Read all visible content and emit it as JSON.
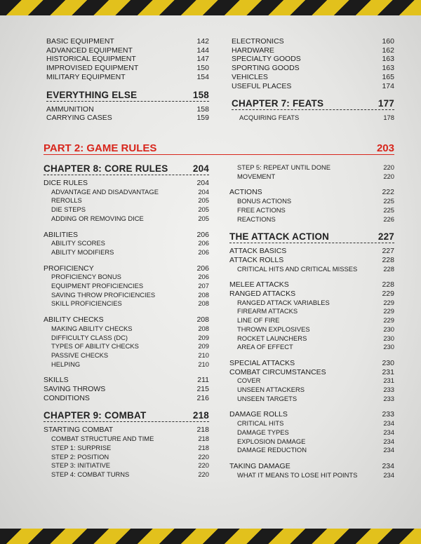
{
  "top": {
    "left": [
      {
        "items": [
          {
            "label": "BASIC EQUIPMENT",
            "page": 142
          },
          {
            "label": "ADVANCED EQUIPMENT",
            "page": 144
          },
          {
            "label": "HISTORICAL EQUIPMENT",
            "page": 147
          },
          {
            "label": "IMPROVISED EQUIPMENT",
            "page": 150
          },
          {
            "label": "MILITARY EQUIPMENT",
            "page": 154
          }
        ]
      },
      {
        "heading": {
          "label": "EVERYTHING ELSE",
          "page": 158
        },
        "items": [
          {
            "label": "AMMUNITION",
            "page": 158
          },
          {
            "label": "CARRYING CASES",
            "page": 159
          }
        ]
      }
    ],
    "right": [
      {
        "items": [
          {
            "label": "ELECTRONICS",
            "page": 160
          },
          {
            "label": "HARDWARE",
            "page": 162
          },
          {
            "label": "SPECIALTY GOODS",
            "page": 163
          },
          {
            "label": "SPORTING GOODS",
            "page": 163
          },
          {
            "label": "VEHICLES",
            "page": 165
          },
          {
            "label": "USEFUL PLACES",
            "page": 174
          }
        ]
      },
      {
        "heading": {
          "label": "CHAPTER 7: FEATS",
          "page": 177
        },
        "subitems": [
          {
            "label": "ACQUIRING FEATS",
            "page": 178
          }
        ]
      }
    ]
  },
  "part_heading": {
    "label": "PART 2: GAME RULES",
    "page": 203
  },
  "bottom": {
    "left": [
      {
        "heading": {
          "label": "CHAPTER 8: CORE RULES",
          "page": 204
        },
        "items": [
          {
            "label": "DICE RULES",
            "page": 204,
            "subitems": [
              {
                "label": "ADVANTAGE AND DISADVANTAGE",
                "page": 204
              },
              {
                "label": "REROLLS",
                "page": 205
              },
              {
                "label": "DIE STEPS",
                "page": 205
              },
              {
                "label": "ADDING OR REMOVING DICE",
                "page": 205
              }
            ]
          },
          {
            "label": "ABILITIES",
            "page": 206,
            "subitems": [
              {
                "label": "ABILITY SCORES",
                "page": 206
              },
              {
                "label": "ABILITY MODIFIERS",
                "page": 206
              }
            ]
          },
          {
            "label": "PROFICIENCY",
            "page": 206,
            "subitems": [
              {
                "label": "PROFICIENCY BONUS",
                "page": 206
              },
              {
                "label": "EQUIPMENT PROFICIENCIES",
                "page": 207
              },
              {
                "label": "SAVING THROW PROFICIENCIES",
                "page": 208
              },
              {
                "label": "SKILL PROFICIENCIES",
                "page": 208
              }
            ]
          },
          {
            "label": "ABILITY CHECKS",
            "page": 208,
            "subitems": [
              {
                "label": "MAKING ABILITY CHECKS",
                "page": 208
              },
              {
                "label": "DIFFICULTY CLASS (DC)",
                "page": 209
              },
              {
                "label": "TYPES OF ABILITY CHECKS",
                "page": 209
              },
              {
                "label": "PASSIVE CHECKS",
                "page": 210
              },
              {
                "label": "HELPING",
                "page": 210
              }
            ]
          },
          {
            "label": "SKILLS",
            "page": 211
          },
          {
            "label": "SAVING THROWS",
            "page": 215
          },
          {
            "label": "CONDITIONS",
            "page": 216
          }
        ]
      },
      {
        "heading": {
          "label": "CHAPTER 9: COMBAT",
          "page": 218
        },
        "items": [
          {
            "label": "STARTING COMBAT",
            "page": 218,
            "subitems": [
              {
                "label": "COMBAT STRUCTURE AND TIME",
                "page": 218
              },
              {
                "label": "STEP 1: SURPRISE",
                "page": 218
              },
              {
                "label": "STEP 2: POSITION",
                "page": 220
              },
              {
                "label": "STEP 3: INITIATIVE",
                "page": 220
              },
              {
                "label": "STEP 4: COMBAT TURNS",
                "page": 220
              }
            ]
          }
        ]
      }
    ],
    "right": [
      {
        "subitems": [
          {
            "label": "STEP 5: REPEAT UNTIL DONE",
            "page": 220
          },
          {
            "label": "MOVEMENT",
            "page": 220
          }
        ],
        "items": [
          {
            "label": "ACTIONS",
            "page": 222,
            "subitems": [
              {
                "label": "BONUS ACTIONS",
                "page": 225
              },
              {
                "label": "FREE ACTIONS",
                "page": 225
              },
              {
                "label": "REACTIONS",
                "page": 226
              }
            ]
          }
        ]
      },
      {
        "heading": {
          "label": "THE ATTACK ACTION",
          "page": 227
        },
        "items": [
          {
            "label": "ATTACK BASICS",
            "page": 227
          },
          {
            "label": "ATTACK ROLLS",
            "page": 228,
            "subitems": [
              {
                "label": "CRITICAL HITS AND CRITICAL MISSES",
                "page": 228
              }
            ]
          },
          {
            "label": "MELEE ATTACKS",
            "page": 228
          },
          {
            "label": "RANGED ATTACKS",
            "page": 229,
            "subitems": [
              {
                "label": "RANGED ATTACK VARIABLES",
                "page": 229
              },
              {
                "label": "FIREARM ATTACKS",
                "page": 229
              },
              {
                "label": "LINE OF FIRE",
                "page": 229
              },
              {
                "label": "THROWN EXPLOSIVES",
                "page": 230
              },
              {
                "label": "ROCKET LAUNCHERS",
                "page": 230
              },
              {
                "label": "AREA OF EFFECT",
                "page": 230
              }
            ]
          },
          {
            "label": "SPECIAL ATTACKS",
            "page": 230
          },
          {
            "label": "COMBAT CIRCUMSTANCES",
            "page": 231,
            "subitems": [
              {
                "label": "COVER",
                "page": 231
              },
              {
                "label": "UNSEEN ATTACKERS",
                "page": 233
              },
              {
                "label": "UNSEEN TARGETS",
                "page": 233
              }
            ]
          },
          {
            "label": "DAMAGE ROLLS",
            "page": 233,
            "subitems": [
              {
                "label": "CRITICAL HITS",
                "page": 234
              },
              {
                "label": "DAMAGE TYPES",
                "page": 234
              },
              {
                "label": "EXPLOSION DAMAGE",
                "page": 234
              },
              {
                "label": "DAMAGE REDUCTION",
                "page": 234
              }
            ]
          },
          {
            "label": "TAKING DAMAGE",
            "page": 234,
            "subitems": [
              {
                "label": "WHAT IT MEANS TO LOSE HIT POINTS",
                "page": 234
              }
            ]
          }
        ]
      }
    ]
  }
}
